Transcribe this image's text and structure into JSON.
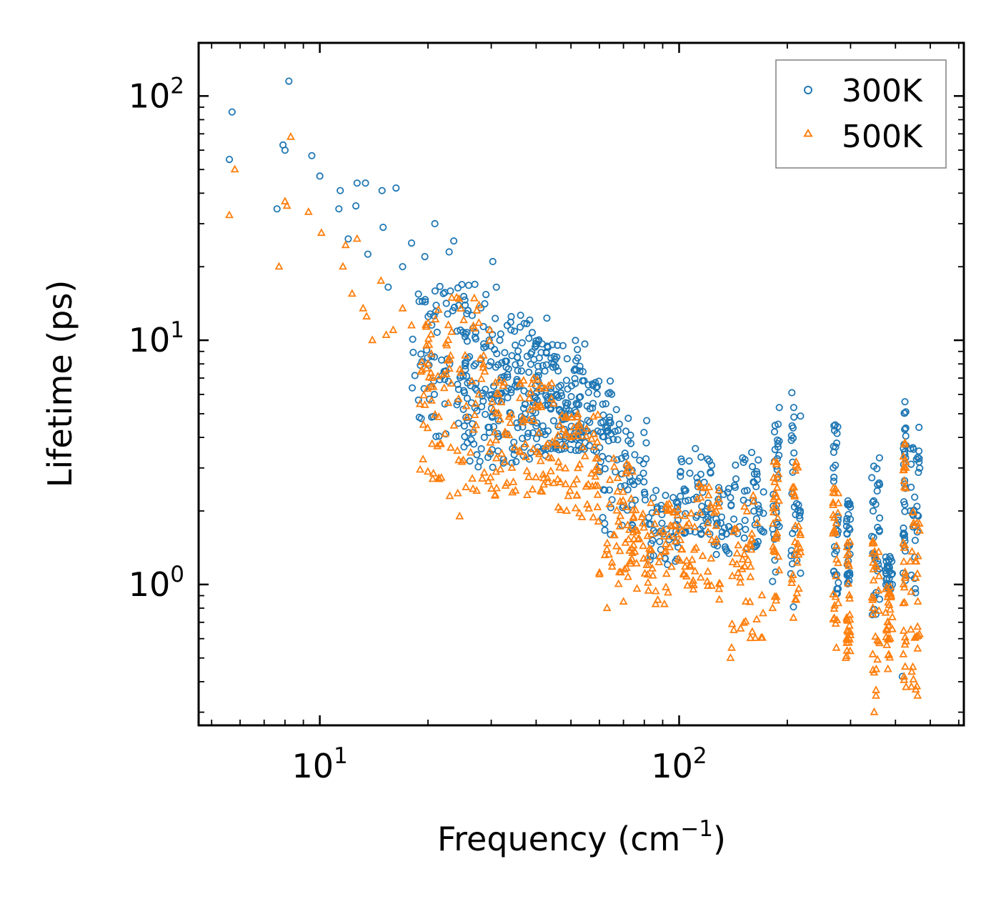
{
  "chart_data": {
    "type": "scatter",
    "title": "",
    "xlabel": "Frequency (cm",
    "xlabel_sup": "−1",
    "xlabel_suffix": ")",
    "ylabel": "Lifetime (ps)",
    "xscale": "log",
    "yscale": "log",
    "xlim": [
      4.6,
      620
    ],
    "ylim": [
      0.265,
      165
    ],
    "x_ticks": [
      {
        "value": 10,
        "base": "10",
        "exp": "1"
      },
      {
        "value": 100,
        "base": "10",
        "exp": "2"
      }
    ],
    "y_ticks": [
      {
        "value": 1,
        "base": "10",
        "exp": "0"
      },
      {
        "value": 10,
        "base": "10",
        "exp": "1"
      },
      {
        "value": 100,
        "base": "10",
        "exp": "2"
      }
    ],
    "legend_position": "top-right",
    "colors": {
      "series_300K": "#1f77b4",
      "series_500K": "#ff7f0e",
      "axes": "#000000",
      "legend_border": "#808080"
    },
    "series": [
      {
        "name": "300K",
        "marker": "circle",
        "color": "#1f77b4",
        "sample_points": [
          [
            5.6,
            55
          ],
          [
            5.7,
            86
          ],
          [
            7.6,
            34.5
          ],
          [
            7.9,
            63
          ],
          [
            8.0,
            60
          ],
          [
            8.2,
            115
          ],
          [
            9.5,
            57
          ],
          [
            10.0,
            47
          ],
          [
            11.3,
            34.5
          ],
          [
            11.4,
            41
          ],
          [
            12.0,
            26
          ],
          [
            12.6,
            35.5
          ],
          [
            12.7,
            44
          ],
          [
            13.4,
            44
          ],
          [
            13.6,
            22.5
          ],
          [
            14.9,
            41
          ],
          [
            15.0,
            29
          ],
          [
            15.5,
            16.5
          ],
          [
            16.3,
            42
          ],
          [
            17.0,
            20
          ],
          [
            18.0,
            25
          ],
          [
            19.6,
            22
          ],
          [
            20.9,
            30
          ],
          [
            22.9,
            23
          ],
          [
            23.6,
            25.5
          ],
          [
            30.3,
            21
          ],
          [
            31.0,
            16.5
          ],
          [
            34.1,
            12.5
          ],
          [
            40.0,
            9.5
          ],
          [
            47.5,
            9.5
          ],
          [
            58.8,
            6.4
          ],
          [
            66.9,
            5.2
          ],
          [
            81.0,
            3.8
          ],
          [
            111,
            3.6
          ],
          [
            190,
            5.3
          ],
          [
            206,
            6.1
          ],
          [
            208,
            0.81
          ],
          [
            272,
            4.5
          ],
          [
            295,
            2.2
          ],
          [
            348,
            2.2
          ],
          [
            361,
            3.3
          ],
          [
            386,
            1.3
          ],
          [
            392,
            1.0
          ],
          [
            418,
            0.42
          ],
          [
            425,
            5.6
          ],
          [
            465,
            4.4
          ]
        ],
        "bands": [
          {
            "x": [
              18,
              30
            ],
            "y": [
              4,
              17
            ]
          },
          {
            "x": [
              25,
              45
            ],
            "y": [
              3,
              13
            ]
          },
          {
            "x": [
              30,
              55
            ],
            "y": [
              3.5,
              10
            ]
          },
          {
            "x": [
              45,
              65
            ],
            "y": [
              3.5,
              7
            ]
          },
          {
            "x": [
              60,
              82
            ],
            "y": [
              1.6,
              5
            ]
          },
          {
            "x": [
              82,
              100
            ],
            "y": [
              1.2,
              2.5
            ]
          },
          {
            "x": [
              100,
              125
            ],
            "y": [
              1.6,
              3.4
            ]
          },
          {
            "x": [
              125,
              140
            ],
            "y": [
              1.3,
              2.5
            ]
          },
          {
            "x": [
              140,
              172
            ],
            "y": [
              1.4,
              3.6
            ]
          },
          {
            "x": [
              182,
              190
            ],
            "y": [
              1.0,
              5.3
            ]
          },
          {
            "x": [
              203,
              218
            ],
            "y": [
              1.1,
              6.1
            ]
          },
          {
            "x": [
              268,
              278
            ],
            "y": [
              0.9,
              4.5
            ]
          },
          {
            "x": [
              292,
              300
            ],
            "y": [
              1.0,
              2.2
            ]
          },
          {
            "x": [
              343,
              362
            ],
            "y": [
              0.75,
              3.3
            ]
          },
          {
            "x": [
              375,
              393
            ],
            "y": [
              0.95,
              1.3
            ]
          },
          {
            "x": [
              420,
              428
            ],
            "y": [
              0.95,
              5.6
            ]
          },
          {
            "x": [
              440,
              468
            ],
            "y": [
              0.9,
              4.4
            ]
          }
        ]
      },
      {
        "name": "500K",
        "marker": "triangle",
        "color": "#ff7f0e",
        "sample_points": [
          [
            5.6,
            32.5
          ],
          [
            5.8,
            50
          ],
          [
            7.7,
            20
          ],
          [
            8.0,
            37
          ],
          [
            8.1,
            35.5
          ],
          [
            8.3,
            68
          ],
          [
            9.3,
            33.5
          ],
          [
            10.1,
            27.5
          ],
          [
            11.6,
            20
          ],
          [
            11.8,
            24.5
          ],
          [
            12.3,
            15.5
          ],
          [
            12.7,
            26
          ],
          [
            13.2,
            13.5
          ],
          [
            13.5,
            12.5
          ],
          [
            14.0,
            10
          ],
          [
            14.8,
            17.5
          ],
          [
            15.3,
            10.5
          ],
          [
            16.0,
            11
          ],
          [
            17.0,
            13.5
          ],
          [
            18.0,
            11.5
          ],
          [
            19.8,
            9.5
          ],
          [
            20.5,
            7
          ],
          [
            21.5,
            2.7
          ],
          [
            23.0,
            2.3
          ],
          [
            24.5,
            1.9
          ],
          [
            25.5,
            2.5
          ],
          [
            60,
            1.1
          ],
          [
            63,
            0.8
          ],
          [
            70,
            0.85
          ],
          [
            86,
            0.83
          ],
          [
            91,
            0.83
          ],
          [
            139,
            0.5
          ],
          [
            140,
            0.55
          ],
          [
            182,
            0.8
          ],
          [
            208,
            0.73
          ],
          [
            274,
            0.55
          ],
          [
            291,
            0.5
          ],
          [
            349,
            0.3
          ],
          [
            353,
            0.35
          ],
          [
            381,
            0.45
          ],
          [
            425,
            3.8
          ],
          [
            428,
            0.38
          ],
          [
            461,
            0.35
          ]
        ],
        "bands": [
          {
            "x": [
              19,
              30
            ],
            "y": [
              2.3,
              15
            ]
          },
          {
            "x": [
              30,
              45
            ],
            "y": [
              2.3,
              7
            ]
          },
          {
            "x": [
              45,
              60
            ],
            "y": [
              1.8,
              5
            ]
          },
          {
            "x": [
              58,
              75
            ],
            "y": [
              1.0,
              3.5
            ]
          },
          {
            "x": [
              75,
              95
            ],
            "y": [
              0.85,
              2.2
            ]
          },
          {
            "x": [
              95,
              110
            ],
            "y": [
              0.95,
              2.1
            ]
          },
          {
            "x": [
              110,
              130
            ],
            "y": [
              0.85,
              2.6
            ]
          },
          {
            "x": [
              140,
              172
            ],
            "y": [
              0.6,
              2.4
            ]
          },
          {
            "x": [
              182,
              190
            ],
            "y": [
              0.8,
              3.2
            ]
          },
          {
            "x": [
              203,
              218
            ],
            "y": [
              0.85,
              3.3
            ]
          },
          {
            "x": [
              268,
              278
            ],
            "y": [
              0.6,
              2.7
            ]
          },
          {
            "x": [
              292,
              300
            ],
            "y": [
              0.5,
              1.5
            ]
          },
          {
            "x": [
              343,
              362
            ],
            "y": [
              0.35,
              1.6
            ]
          },
          {
            "x": [
              375,
              393
            ],
            "y": [
              0.5,
              1.0
            ]
          },
          {
            "x": [
              420,
              428
            ],
            "y": [
              0.38,
              3.8
            ]
          },
          {
            "x": [
              440,
              468
            ],
            "y": [
              0.35,
              2.3
            ]
          }
        ]
      }
    ]
  }
}
